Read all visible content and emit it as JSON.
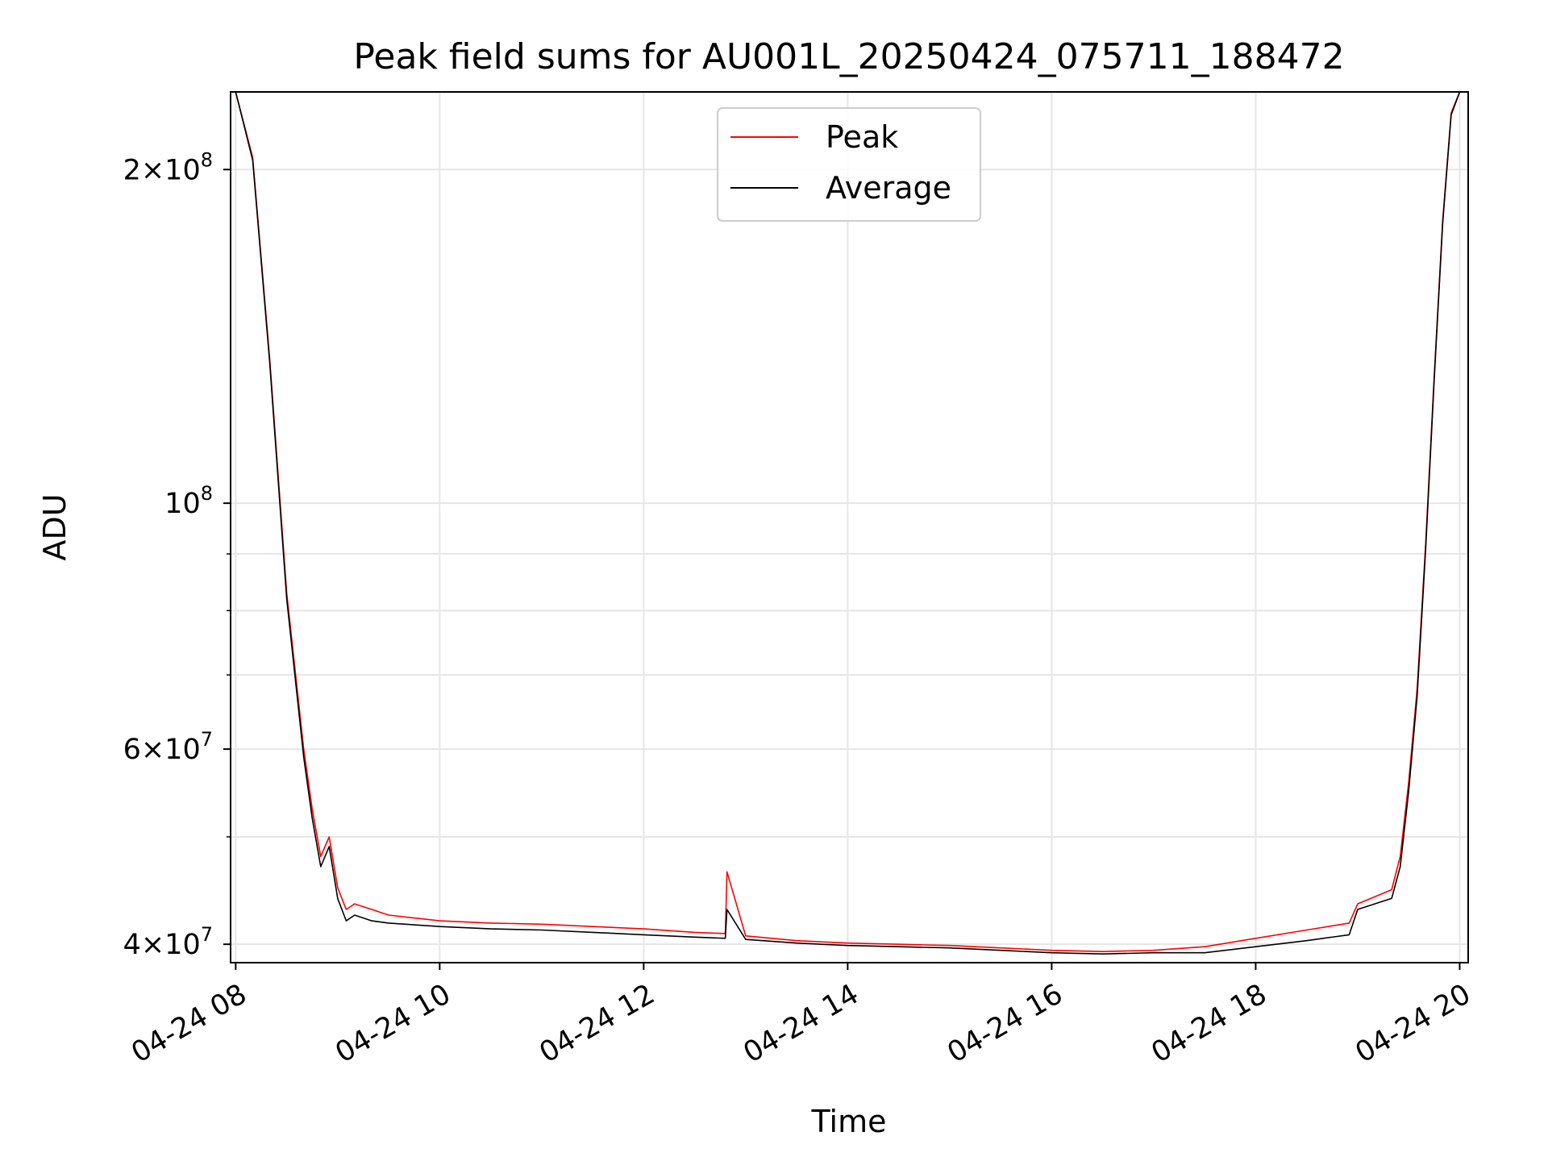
{
  "chart_data": {
    "type": "line",
    "title": "Peak field sums for AU001L_20250424_075711_188472",
    "xlabel": "Time",
    "ylabel": "ADU",
    "yscale": "log",
    "xlim": [
      "2025-04-24T07:57",
      "2025-04-24T20:05"
    ],
    "ylim": [
      38500000,
      235000000
    ],
    "grid": true,
    "legend_position": "top-center",
    "x_ticks": [
      {
        "value": "2025-04-24T08:00",
        "label": "04-24 08"
      },
      {
        "value": "2025-04-24T10:00",
        "label": "04-24 10"
      },
      {
        "value": "2025-04-24T12:00",
        "label": "04-24 12"
      },
      {
        "value": "2025-04-24T14:00",
        "label": "04-24 14"
      },
      {
        "value": "2025-04-24T16:00",
        "label": "04-24 16"
      },
      {
        "value": "2025-04-24T18:00",
        "label": "04-24 18"
      },
      {
        "value": "2025-04-24T20:00",
        "label": "04-24 20"
      }
    ],
    "y_ticks_major": [
      {
        "value": 40000000,
        "mantissa": "4",
        "exponent": "7"
      },
      {
        "value": 60000000,
        "mantissa": "6",
        "exponent": "7"
      },
      {
        "value": 100000000,
        "mantissa": "",
        "exponent": "8"
      },
      {
        "value": 200000000,
        "mantissa": "2",
        "exponent": "8"
      }
    ],
    "y_ticks_minor": [
      50000000,
      70000000,
      80000000,
      90000000
    ],
    "series": [
      {
        "name": "Peak",
        "color": "#ff0000",
        "x": [
          "2025-04-24T08:00",
          "2025-04-24T08:10",
          "2025-04-24T08:20",
          "2025-04-24T08:30",
          "2025-04-24T08:40",
          "2025-04-24T08:45",
          "2025-04-24T08:50",
          "2025-04-24T08:55",
          "2025-04-24T09:00",
          "2025-04-24T09:05",
          "2025-04-24T09:10",
          "2025-04-24T09:20",
          "2025-04-24T09:30",
          "2025-04-24T10:00",
          "2025-04-24T10:30",
          "2025-04-24T11:00",
          "2025-04-24T11:30",
          "2025-04-24T12:00",
          "2025-04-24T12:30",
          "2025-04-24T12:48",
          "2025-04-24T12:49",
          "2025-04-24T13:00",
          "2025-04-24T13:30",
          "2025-04-24T14:00",
          "2025-04-24T14:30",
          "2025-04-24T15:00",
          "2025-04-24T15:30",
          "2025-04-24T16:00",
          "2025-04-24T16:30",
          "2025-04-24T17:00",
          "2025-04-24T17:30",
          "2025-04-24T18:00",
          "2025-04-24T18:30",
          "2025-04-24T18:55",
          "2025-04-24T19:00",
          "2025-04-24T19:20",
          "2025-04-24T19:25",
          "2025-04-24T19:30",
          "2025-04-24T19:35",
          "2025-04-24T19:40",
          "2025-04-24T19:45",
          "2025-04-24T19:50",
          "2025-04-24T19:55",
          "2025-04-24T20:00"
        ],
        "values": [
          235000000,
          205000000,
          135000000,
          83000000,
          60000000,
          53000000,
          48000000,
          50000000,
          45000000,
          43000000,
          43500000,
          43000000,
          42500000,
          42000000,
          41800000,
          41700000,
          41500000,
          41300000,
          41000000,
          40900000,
          46500000,
          40700000,
          40300000,
          40100000,
          40000000,
          39900000,
          39700000,
          39500000,
          39400000,
          39500000,
          39800000,
          40500000,
          41200000,
          41800000,
          43500000,
          44800000,
          48000000,
          56000000,
          68000000,
          92000000,
          130000000,
          180000000,
          225000000,
          235000000
        ]
      },
      {
        "name": "Average",
        "color": "#000000",
        "x": [
          "2025-04-24T08:00",
          "2025-04-24T08:10",
          "2025-04-24T08:20",
          "2025-04-24T08:30",
          "2025-04-24T08:40",
          "2025-04-24T08:45",
          "2025-04-24T08:50",
          "2025-04-24T08:55",
          "2025-04-24T09:00",
          "2025-04-24T09:05",
          "2025-04-24T09:10",
          "2025-04-24T09:20",
          "2025-04-24T09:30",
          "2025-04-24T10:00",
          "2025-04-24T10:30",
          "2025-04-24T11:00",
          "2025-04-24T11:30",
          "2025-04-24T12:00",
          "2025-04-24T12:30",
          "2025-04-24T12:48",
          "2025-04-24T12:49",
          "2025-04-24T13:00",
          "2025-04-24T13:30",
          "2025-04-24T14:00",
          "2025-04-24T14:30",
          "2025-04-24T15:00",
          "2025-04-24T15:30",
          "2025-04-24T16:00",
          "2025-04-24T16:30",
          "2025-04-24T17:00",
          "2025-04-24T17:30",
          "2025-04-24T18:00",
          "2025-04-24T18:30",
          "2025-04-24T18:55",
          "2025-04-24T19:00",
          "2025-04-24T19:20",
          "2025-04-24T19:25",
          "2025-04-24T19:30",
          "2025-04-24T19:35",
          "2025-04-24T19:40",
          "2025-04-24T19:45",
          "2025-04-24T19:50",
          "2025-04-24T19:55",
          "2025-04-24T20:00"
        ],
        "values": [
          235000000,
          204000000,
          134000000,
          82000000,
          59000000,
          52000000,
          47000000,
          49000000,
          44000000,
          42000000,
          42500000,
          42000000,
          41800000,
          41500000,
          41300000,
          41200000,
          41000000,
          40800000,
          40600000,
          40500000,
          43000000,
          40400000,
          40100000,
          39900000,
          39800000,
          39700000,
          39500000,
          39300000,
          39200000,
          39300000,
          39300000,
          39800000,
          40300000,
          40800000,
          43000000,
          44000000,
          47000000,
          55000000,
          67000000,
          91000000,
          129000000,
          179000000,
          224000000,
          235000000
        ]
      }
    ]
  }
}
